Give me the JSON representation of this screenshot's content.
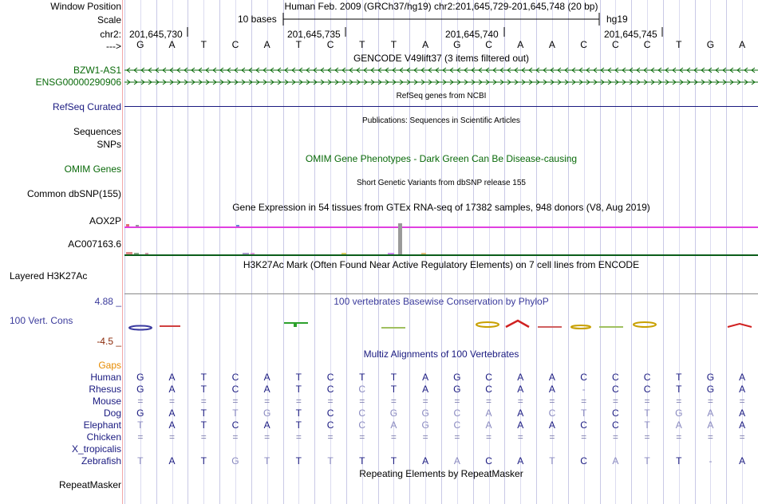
{
  "header": {
    "window_position_label": "Window Position",
    "window_position_value": "Human Feb. 2009 (GRCh37/hg19)   chr2:201,645,729-201,645,748 (20 bp)",
    "scale_label": "Scale",
    "scale_text": "10 bases",
    "assembly": "hg19",
    "chrom_label": "chr2:",
    "arrow_label": "--->",
    "coord_ticks": [
      "201,645,730",
      "201,645,735",
      "201,645,740",
      "201,645,745"
    ]
  },
  "bases": [
    "G",
    "A",
    "T",
    "C",
    "A",
    "T",
    "C",
    "T",
    "T",
    "A",
    "G",
    "C",
    "A",
    "A",
    "C",
    "C",
    "C",
    "T",
    "G",
    "A"
  ],
  "tracks": {
    "gencode_title": "GENCODE V49lift37 (3 items filtered out)",
    "bzw1_label": "BZW1-AS1",
    "ensg_label": "ENSG00000290906",
    "refseq_title": "RefSeq genes from NCBI",
    "refseq_label": "RefSeq Curated",
    "publications_title": "Publications: Sequences in Scientific Articles",
    "sequences_label": "Sequences",
    "snps_label": "SNPs",
    "omim_title": "OMIM Gene Phenotypes - Dark Green Can Be Disease-causing",
    "omim_label": "OMIM Genes",
    "dbsnp_title": "Short Genetic Variants from dbSNP release 155",
    "dbsnp_label": "Common dbSNP(155)",
    "gtex_title": "Gene Expression in 54 tissues from GTEx RNA-seq of 17382 samples, 948 donors (V8, Aug 2019)",
    "aox2p_label": "AOX2P",
    "ac007_label": "AC007163.6",
    "h3k27ac_title": "H3K27Ac Mark (Often Found Near Active Regulatory Elements) on 7 cell lines from ENCODE",
    "h3k27ac_label": "Layered H3K27Ac",
    "phylop_title": "100 vertebrates Basewise Conservation by PhyloP",
    "phylop_max": "4.88 _",
    "phylop_label": "100 Vert. Cons",
    "phylop_min": "-4.5 _",
    "multiz_title": "Multiz Alignments of 100 Vertebrates",
    "gaps_label": "Gaps",
    "repeat_title": "Repeating Elements by RepeatMasker",
    "repeat_label": "RepeatMasker"
  },
  "alignment": [
    {
      "species": "Human",
      "bases": [
        "G",
        "A",
        "T",
        "C",
        "A",
        "T",
        "C",
        "T",
        "T",
        "A",
        "G",
        "C",
        "A",
        "A",
        "C",
        "C",
        "C",
        "T",
        "G",
        "A"
      ]
    },
    {
      "species": "Rhesus",
      "bases": [
        "G",
        "A",
        "T",
        "C",
        "A",
        "T",
        "C",
        "C",
        "T",
        "A",
        "G",
        "C",
        "A",
        "A",
        "-",
        "C",
        "C",
        "T",
        "G",
        "A"
      ]
    },
    {
      "species": "Mouse",
      "bases": [
        "=",
        "=",
        "=",
        "=",
        "=",
        "=",
        "=",
        "=",
        "=",
        "=",
        "=",
        "=",
        "=",
        "=",
        "=",
        "=",
        "=",
        "=",
        "=",
        "="
      ]
    },
    {
      "species": "Dog",
      "bases": [
        "G",
        "A",
        "T",
        "T",
        "G",
        "T",
        "C",
        "C",
        "G",
        "G",
        "C",
        "A",
        "A",
        "C",
        "T",
        "C",
        "T",
        "G",
        "A",
        "A"
      ]
    },
    {
      "species": "Elephant",
      "bases": [
        "T",
        "A",
        "T",
        "C",
        "A",
        "T",
        "C",
        "C",
        "A",
        "G",
        "C",
        "A",
        "A",
        "A",
        "C",
        "C",
        "T",
        "A",
        "A",
        "A"
      ]
    },
    {
      "species": "Chicken",
      "bases": [
        "=",
        "=",
        "=",
        "=",
        "=",
        "=",
        "=",
        "=",
        "=",
        "=",
        "=",
        "=",
        "=",
        "=",
        "=",
        "=",
        "=",
        "=",
        "=",
        "="
      ]
    },
    {
      "species": "X_tropicalis",
      "bases": []
    },
    {
      "species": "Zebrafish",
      "bases": [
        "T",
        "A",
        "T",
        "G",
        "T",
        "T",
        "T",
        "T",
        "T",
        "A",
        "A",
        "C",
        "A",
        "T",
        "C",
        "A",
        "T",
        "T",
        "-",
        "A"
      ]
    }
  ],
  "colors": {
    "label_green": "#0a6a0a",
    "label_navy": "#1a1a80",
    "phylop_blue": "#3b3b9c",
    "gaps_orange": "#e68a00",
    "gtex_magenta": "#e040e0"
  }
}
